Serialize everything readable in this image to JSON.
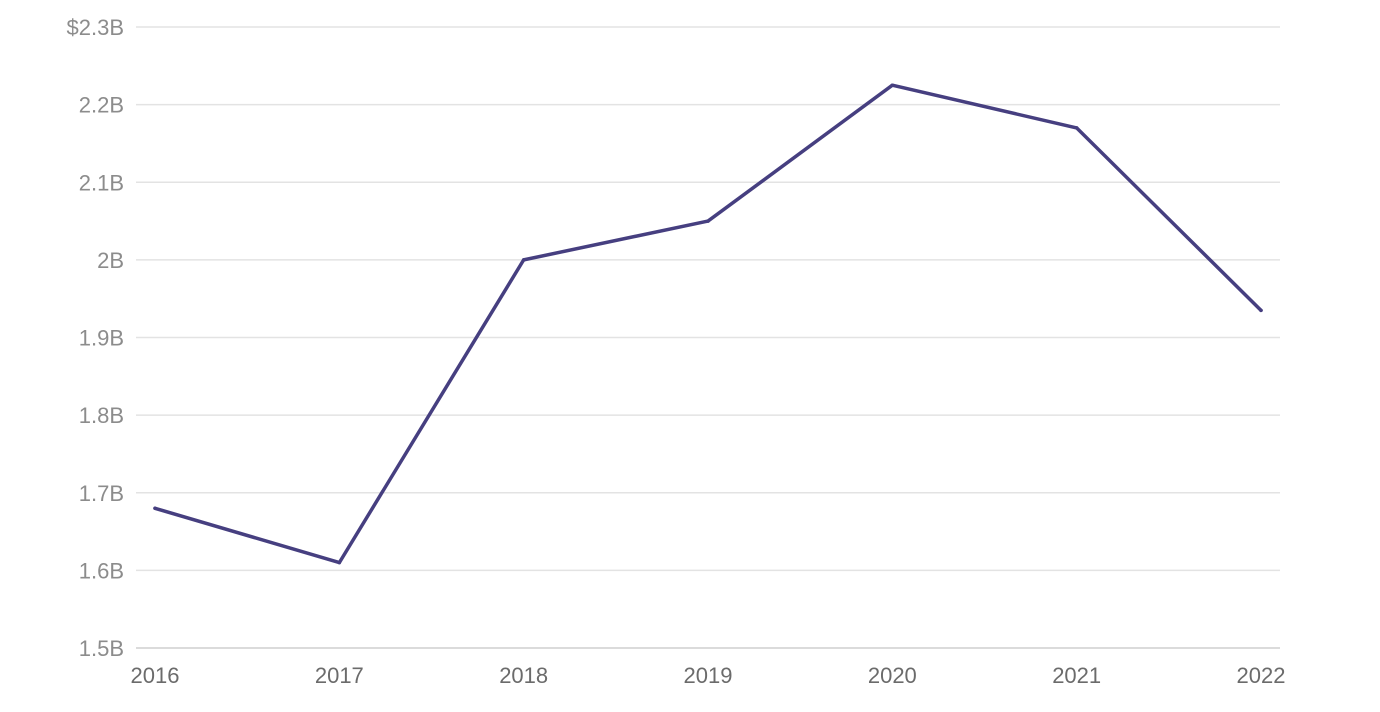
{
  "chart_data": {
    "type": "line",
    "title": "",
    "xlabel": "",
    "ylabel": "",
    "x": [
      "2016",
      "2017",
      "2018",
      "2019",
      "2020",
      "2021",
      "2022"
    ],
    "series": [
      {
        "values": [
          1.68,
          1.61,
          2.0,
          2.05,
          2.225,
          2.17,
          1.935
        ],
        "color": "#463f80"
      }
    ],
    "ylim": [
      1.5,
      2.3
    ],
    "y_ticks": [
      {
        "value": 1.5,
        "label": "1.5B"
      },
      {
        "value": 1.6,
        "label": "1.6B"
      },
      {
        "value": 1.7,
        "label": "1.7B"
      },
      {
        "value": 1.8,
        "label": "1.8B"
      },
      {
        "value": 1.9,
        "label": "1.9B"
      },
      {
        "value": 2.0,
        "label": "2B"
      },
      {
        "value": 2.1,
        "label": "2.1B"
      },
      {
        "value": 2.2,
        "label": "2.2B"
      },
      {
        "value": 2.3,
        "label": "$2.3B"
      }
    ],
    "grid": true,
    "legend": "none"
  }
}
